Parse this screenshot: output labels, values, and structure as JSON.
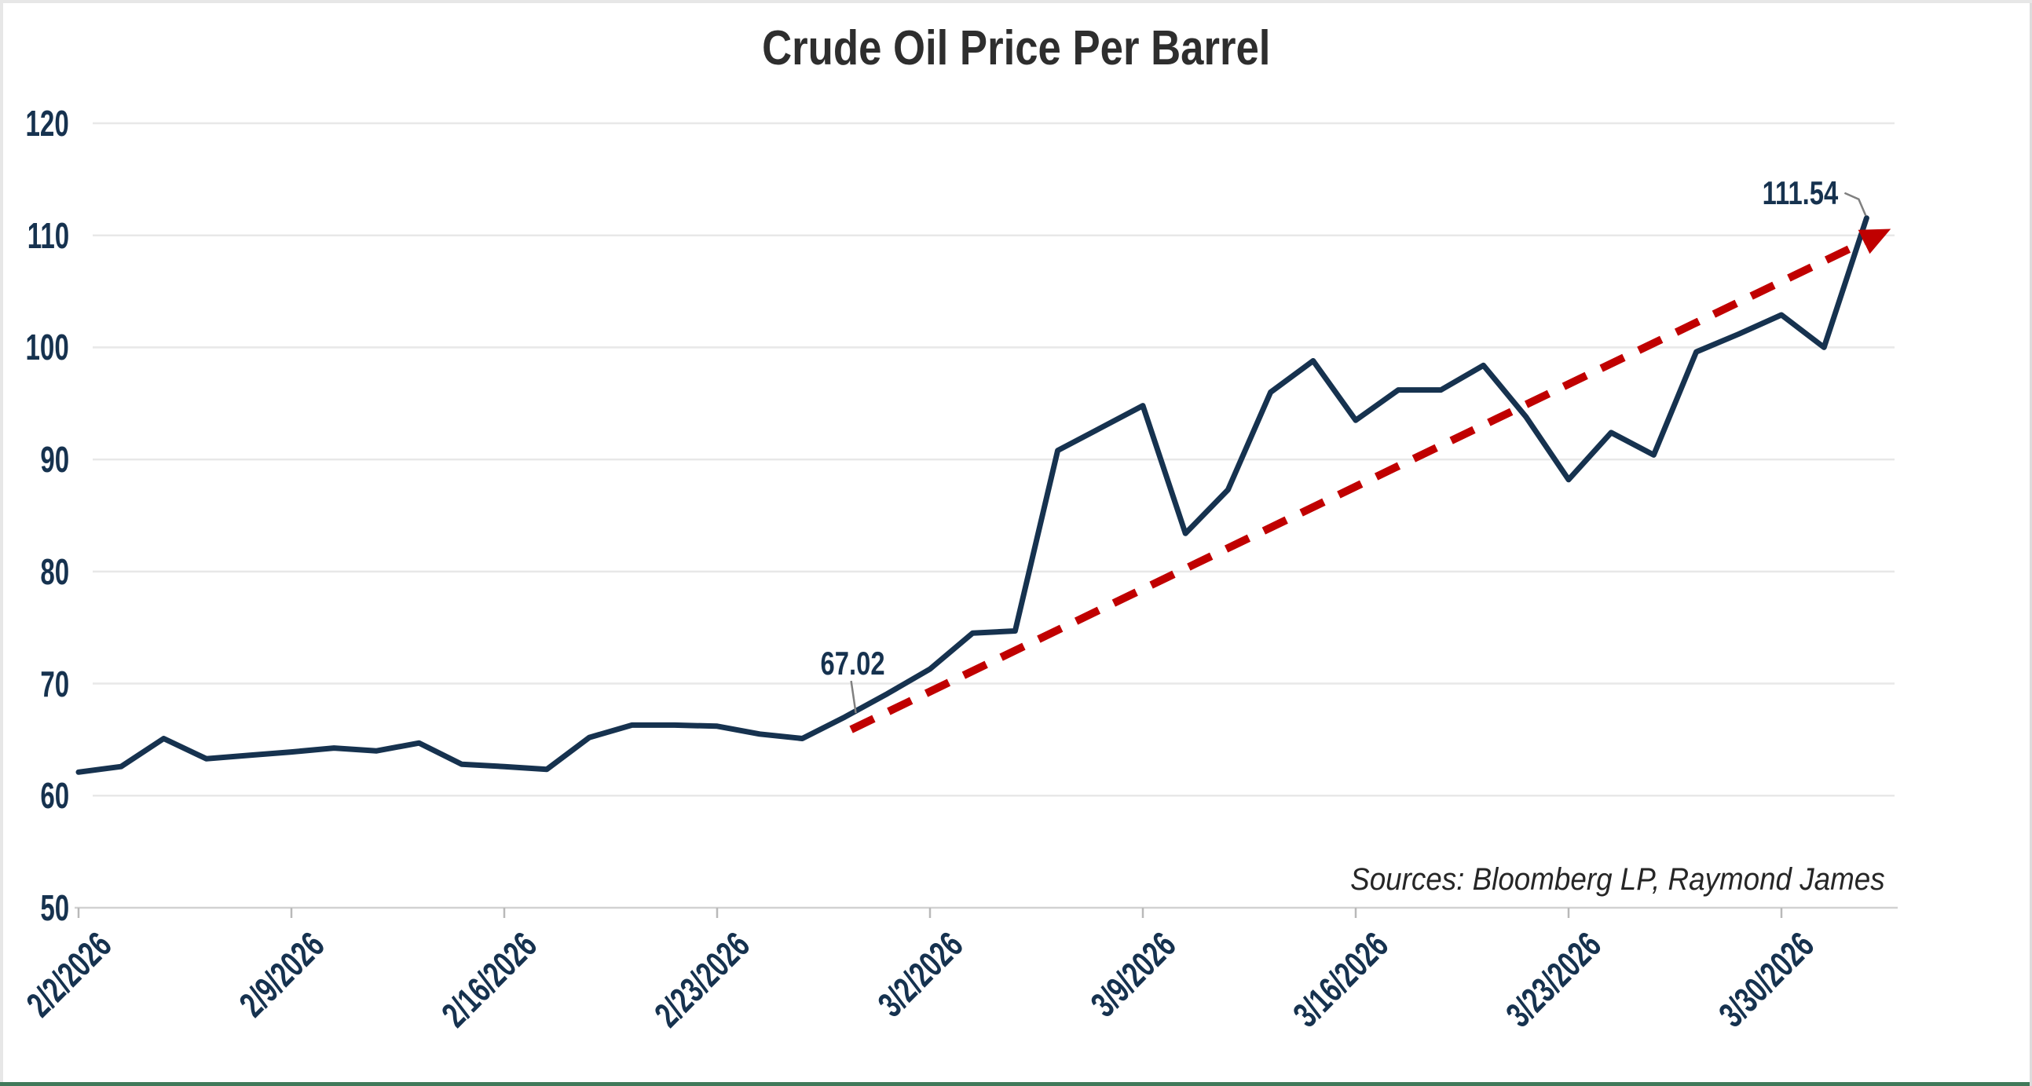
{
  "title": "Crude Oil Price Per Barrel",
  "source_note": "Sources: Bloomberg LP, Raymond James",
  "colors": {
    "line": "#16324F",
    "trend": "#C00000",
    "axis_text": "#16324F",
    "title_text": "#2E2E2E",
    "gridline": "#E8E8E8",
    "axis_line": "#D2D2D2",
    "tick_mark": "#B9B9B9",
    "callout": "#808080",
    "source_text": "#262626",
    "bottom_bar": "#40795A",
    "frame_border": "#E7E7E7"
  },
  "annotations": [
    {
      "label": "67.02",
      "date": "2/26/2026",
      "value": 67.02
    },
    {
      "label": "111.54",
      "date": "4/1/2026",
      "value": 111.54
    }
  ],
  "trendline": {
    "style": "dashed",
    "color": "#C00000",
    "arrow": true,
    "from_date": "2/26/2026",
    "from_value": 65.9,
    "to_date": "4/1/2026",
    "to_value": 109.6
  },
  "chart_data": {
    "type": "line",
    "title": "Crude Oil Price Per Barrel",
    "series_name": "Crude Oil Price Per Barrel ($)",
    "x": [
      "2/2/2026",
      "2/3/2026",
      "2/4/2026",
      "2/5/2026",
      "2/6/2026",
      "2/9/2026",
      "2/10/2026",
      "2/11/2026",
      "2/12/2026",
      "2/13/2026",
      "2/16/2026",
      "2/17/2026",
      "2/18/2026",
      "2/19/2026",
      "2/20/2026",
      "2/23/2026",
      "2/24/2026",
      "2/25/2026",
      "2/26/2026",
      "2/27/2026",
      "3/2/2026",
      "3/3/2026",
      "3/4/2026",
      "3/5/2026",
      "3/6/2026",
      "3/9/2026",
      "3/10/2026",
      "3/11/2026",
      "3/12/2026",
      "3/13/2026",
      "3/16/2026",
      "3/17/2026",
      "3/18/2026",
      "3/19/2026",
      "3/20/2026",
      "3/23/2026",
      "3/24/2026",
      "3/25/2026",
      "3/26/2026",
      "3/27/2026",
      "3/30/2026",
      "3/31/2026",
      "4/1/2026"
    ],
    "values": [
      62.1,
      62.6,
      65.1,
      63.3,
      63.6,
      63.9,
      64.25,
      64.0,
      64.7,
      62.8,
      62.6,
      62.35,
      65.2,
      66.3,
      66.3,
      66.2,
      65.5,
      65.1,
      67.02,
      69.1,
      71.3,
      74.5,
      74.7,
      90.8,
      92.8,
      94.8,
      83.4,
      87.3,
      96.0,
      98.8,
      93.5,
      96.2,
      96.2,
      98.4,
      93.8,
      88.2,
      92.4,
      90.4,
      99.6,
      101.2,
      102.9,
      100.0,
      111.54
    ],
    "x_tick_labels": [
      "2/2/2026",
      "2/9/2026",
      "2/16/2026",
      "2/23/2026",
      "3/2/2026",
      "3/9/2026",
      "3/16/2026",
      "3/23/2026",
      "3/30/2026"
    ],
    "x_tick_every": 5,
    "y_ticks": [
      50,
      60,
      70,
      80,
      90,
      100,
      110,
      120
    ],
    "ylim": [
      50,
      120
    ],
    "grid": "horizontal",
    "legend": "none",
    "xlabel": "",
    "ylabel": ""
  }
}
